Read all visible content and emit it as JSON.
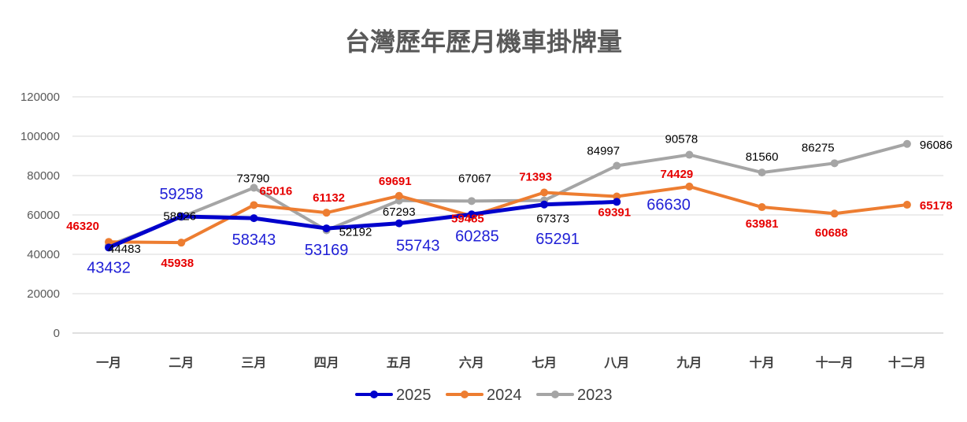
{
  "chart_data": {
    "type": "line",
    "title": "台灣歷年歷月機車掛牌量",
    "categories": [
      "一月",
      "二月",
      "三月",
      "四月",
      "五月",
      "六月",
      "七月",
      "八月",
      "九月",
      "十月",
      "十一月",
      "十二月"
    ],
    "ylim": [
      0,
      120000
    ],
    "yticks": [
      0,
      20000,
      40000,
      60000,
      80000,
      100000,
      120000
    ],
    "grid": true,
    "legend_position": "bottom",
    "series": [
      {
        "name": "2025",
        "color": "#0000CC",
        "label_color": "#1F1FD6",
        "values": [
          43432,
          59258,
          58343,
          53169,
          55743,
          60285,
          65291,
          66630,
          null,
          null,
          null,
          null
        ]
      },
      {
        "name": "2024",
        "color": "#ED7D31",
        "label_color": "#E60000",
        "values": [
          46320,
          45938,
          65016,
          61132,
          69691,
          59485,
          71393,
          69391,
          74429,
          63981,
          60688,
          65178
        ]
      },
      {
        "name": "2023",
        "color": "#A5A5A5",
        "label_color": "#000000",
        "values": [
          44483,
          58926,
          73790,
          52192,
          67293,
          67067,
          67373,
          84997,
          90578,
          81560,
          86275,
          96086
        ]
      }
    ]
  }
}
